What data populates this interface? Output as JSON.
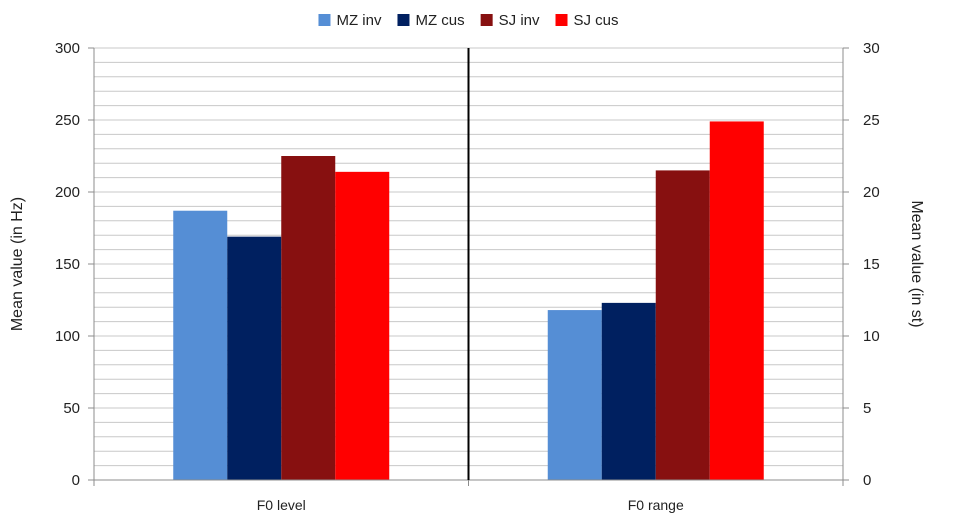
{
  "chart_data": {
    "type": "bar",
    "title": "",
    "categories": [
      "F0 level",
      "F0 range"
    ],
    "series": [
      {
        "name": "MZ inv",
        "color": "#558ED5",
        "values": [
          187,
          11.8
        ]
      },
      {
        "name": "MZ cus",
        "color": "#002060",
        "values": [
          169,
          12.3
        ]
      },
      {
        "name": "SJ inv",
        "color": "#871010",
        "values": [
          225,
          21.5
        ]
      },
      {
        "name": "SJ cus",
        "color": "#FF0000",
        "values": [
          214,
          24.9
        ]
      }
    ],
    "value_axis_per_category": [
      "left",
      "right"
    ],
    "left_axis": {
      "label": "Mean value (in Hz)",
      "min": 0,
      "max": 300,
      "major_step": 50,
      "minor_step": 10,
      "ticks": [
        "0",
        "50",
        "100",
        "150",
        "200",
        "250",
        "300"
      ]
    },
    "right_axis": {
      "label": "Mean value (in st)",
      "min": 0,
      "max": 30,
      "major_step": 5,
      "ticks": [
        "0",
        "5",
        "10",
        "15",
        "20",
        "25",
        "30"
      ]
    },
    "grid": true,
    "legend_position": "top-center"
  }
}
